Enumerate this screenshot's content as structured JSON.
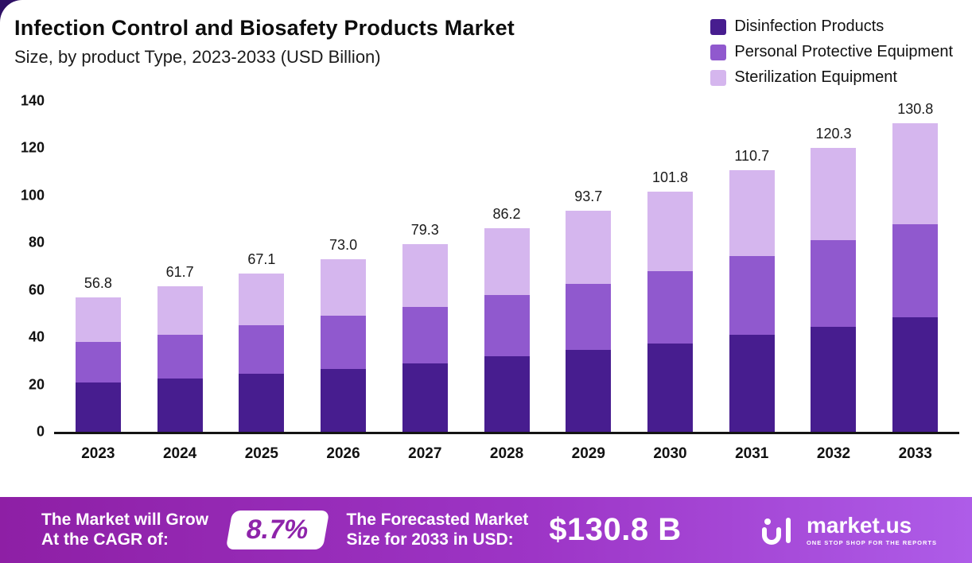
{
  "title": "Infection Control and Biosafety Products Market",
  "subtitle": "Size, by product Type, 2023-2033 (USD Billion)",
  "legend": [
    {
      "label": "Disinfection Products",
      "color": "#471D8F"
    },
    {
      "label": "Personal Protective Equipment",
      "color": "#9059CE"
    },
    {
      "label": "Sterilization Equipment",
      "color": "#D5B6EE"
    }
  ],
  "chart_data": {
    "type": "bar",
    "stacked": true,
    "title": "Infection Control and Biosafety Products Market Size, by product Type, 2023-2033 (USD Billion)",
    "xlabel": "",
    "ylabel": "",
    "ylim": [
      0,
      140
    ],
    "yticks": [
      0,
      20,
      40,
      60,
      80,
      100,
      120,
      140
    ],
    "grid": false,
    "legend_position": "top-right",
    "categories": [
      "2023",
      "2024",
      "2025",
      "2026",
      "2027",
      "2028",
      "2029",
      "2030",
      "2031",
      "2032",
      "2033"
    ],
    "totals": [
      56.8,
      61.7,
      67.1,
      73.0,
      79.3,
      86.2,
      93.7,
      101.8,
      110.7,
      120.3,
      130.8
    ],
    "series": [
      {
        "name": "Disinfection Products",
        "key": "disinfection-products",
        "color": "#471D8F",
        "values": [
          21.0,
          22.5,
          24.5,
          26.5,
          29.0,
          32.0,
          34.5,
          37.5,
          41.0,
          44.5,
          48.5
        ]
      },
      {
        "name": "Personal Protective Equipment",
        "key": "personal-protective-equipment",
        "color": "#9059CE",
        "values": [
          17.0,
          18.5,
          20.5,
          22.5,
          24.0,
          26.0,
          28.0,
          30.5,
          33.5,
          36.5,
          39.5
        ]
      },
      {
        "name": "Sterilization Equipment",
        "key": "sterilization-equipment",
        "color": "#D5B6EE",
        "values": [
          18.8,
          20.7,
          22.1,
          24.0,
          26.3,
          28.2,
          31.2,
          33.8,
          36.2,
          39.3,
          42.8
        ]
      }
    ]
  },
  "banner": {
    "cagr_label_lines": [
      "The Market will Grow",
      "At the CAGR of:"
    ],
    "cagr_value": "8.7%",
    "forecast_label_lines": [
      "The Forecasted Market",
      "Size for 2033 in USD:"
    ],
    "forecast_value": "$130.8 B",
    "brand": "market.us",
    "brand_tagline": "ONE STOP SHOP FOR THE REPORTS"
  },
  "colors": {
    "banner_gradient_start": "#8E1FA5",
    "banner_gradient_end": "#AE5CE8",
    "corner_accent": "#2E1065",
    "cagr_text": "#8E24AA",
    "axis": "#141414"
  }
}
